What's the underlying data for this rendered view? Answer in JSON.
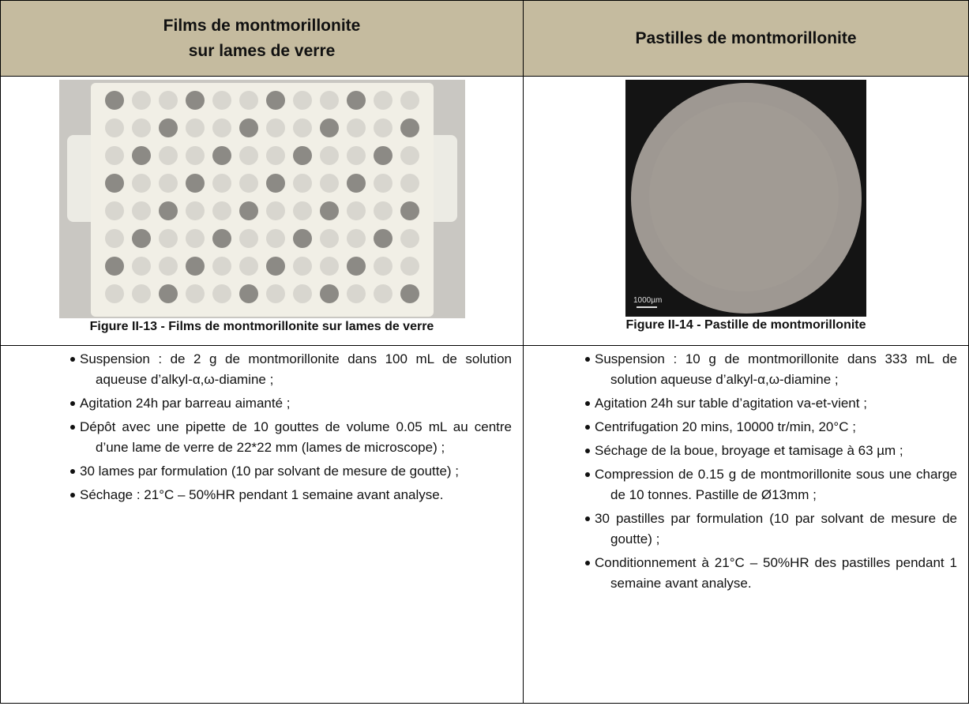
{
  "table": {
    "headers": [
      "Films de montmorillonite\nsur lames de verre",
      "Pastilles de montmorillonite"
    ],
    "figures": [
      {
        "caption": "Figure II-13 - Films de montmorillonite sur lames de verre"
      },
      {
        "caption": "Figure II-14 - Pastille de montmorillonite",
        "scale_label": "1000µm"
      }
    ],
    "lists": [
      [
        "Suspension : de 2 g de montmorillonite dans 100 mL de solution aqueuse d’alkyl-α,ω-diamine ;",
        "Agitation 24h par barreau aimanté ;",
        "Dépôt avec une pipette de 10 gouttes de volume 0.05 mL au centre d’une lame de verre de 22*22 mm (lames de microscope) ;",
        "30 lames par formulation (10 par solvant de mesure de goutte) ;",
        "Séchage : 21°C – 50%HR pendant 1 semaine avant analyse."
      ],
      [
        "Suspension : 10 g de montmorillonite dans 333 mL de solution aqueuse d’alkyl-α,ω-diamine ;",
        "Agitation 24h sur table d’agitation va-et-vient ;",
        "Centrifugation 20 mins, 10000 tr/min, 20°C ;",
        "Séchage de la boue, broyage et tamisage à 63 µm ;",
        "Compression de 0.15 g de montmorillonite sous une charge de 10 tonnes. Pastille de Ø13mm ;",
        "30 pastilles par formulation (10 par solvant de mesure de goutte) ;",
        "Conditionnement à 21°C – 50%HR des pastilles pendant 1 semaine avant analyse."
      ]
    ]
  }
}
